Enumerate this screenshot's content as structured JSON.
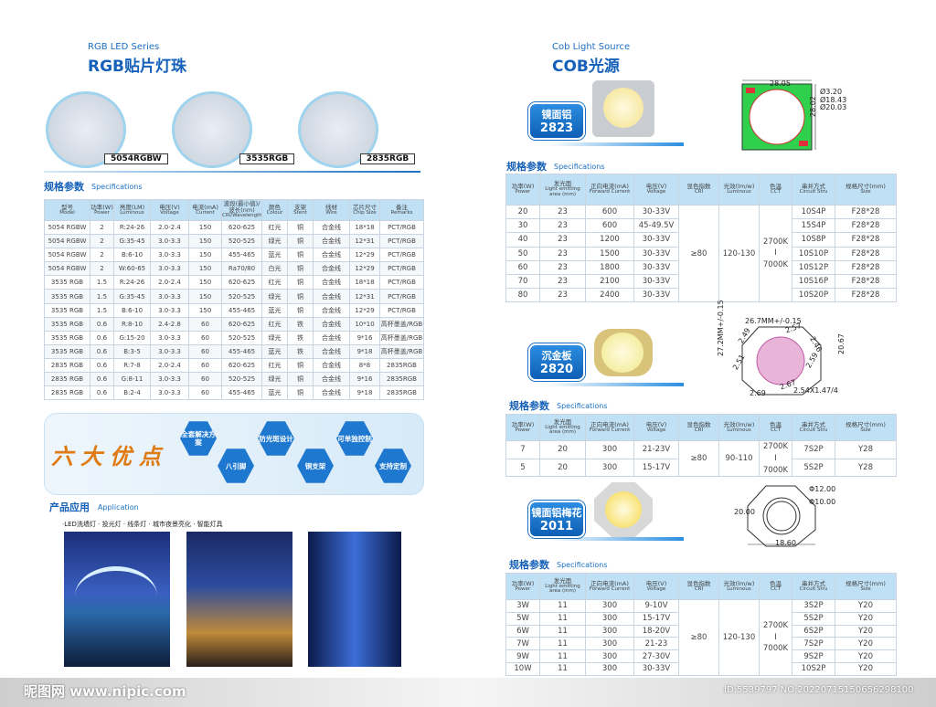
{
  "left": {
    "series": "RGB LED Series",
    "title": "RGB贴片灯珠",
    "products": [
      "5054RGBW",
      "3535RGB",
      "2835RGB"
    ],
    "spec": {
      "title": "规格参数",
      "subtitle": "Specifications"
    },
    "table": {
      "header": [
        [
          "型号",
          "Model"
        ],
        [
          "功率(W)",
          "Power"
        ],
        [
          "亮度(LM)",
          "Luminous"
        ],
        [
          "电压(V)",
          "Voltage"
        ],
        [
          "电流(mA)",
          "Current"
        ],
        [
          "波段(最小值)/波长(nm)",
          "CRI/Wavelength"
        ],
        [
          "颜色",
          "Colour"
        ],
        [
          "支架",
          "Stent"
        ],
        [
          "线材",
          "Wire"
        ],
        [
          "芯片尺寸",
          "Chip Size"
        ],
        [
          "备注",
          "Remarks"
        ]
      ],
      "rows": [
        [
          "5054 RGBW",
          "2",
          "R:24-26",
          "2.0-2.4",
          "150",
          "620-625",
          "红光",
          "铜",
          "合金线",
          "18*18",
          "PCT/RGB"
        ],
        [
          "5054 RGBW",
          "2",
          "G:35-45",
          "3.0-3.3",
          "150",
          "520-525",
          "绿光",
          "铜",
          "合金线",
          "12*31",
          "PCT/RGB"
        ],
        [
          "5054 RGBW",
          "2",
          "B:6-10",
          "3.0-3.3",
          "150",
          "455-465",
          "蓝光",
          "铜",
          "合金线",
          "12*29",
          "PCT/RGB"
        ],
        [
          "5054 RGBW",
          "2",
          "W:60-65",
          "3.0-3.3",
          "150",
          "Ra70/80",
          "白光",
          "铜",
          "合金线",
          "12*29",
          "PCT/RGB"
        ],
        [
          "3535 RGB",
          "1.5",
          "R:24-26",
          "2.0-2.4",
          "150",
          "620-625",
          "红光",
          "铜",
          "合金线",
          "18*18",
          "PCT/RGB"
        ],
        [
          "3535 RGB",
          "1.5",
          "G:35-45",
          "3.0-3.3",
          "150",
          "520-525",
          "绿光",
          "铜",
          "合金线",
          "12*31",
          "PCT/RGB"
        ],
        [
          "3535 RGB",
          "1.5",
          "B:6-10",
          "3.0-3.3",
          "150",
          "455-465",
          "蓝光",
          "铜",
          "合金线",
          "12*29",
          "PCT/RGB"
        ],
        [
          "3535 RGB",
          "0.6",
          "R:8-10",
          "2.4-2.8",
          "60",
          "620-625",
          "红光",
          "铁",
          "合金线",
          "10*10",
          "高杯墨盖/RGB"
        ],
        [
          "3535 RGB",
          "0.6",
          "G:15-20",
          "3.0-3.3",
          "60",
          "520-525",
          "绿光",
          "铁",
          "合金线",
          "9*16",
          "高杯墨盖/RGB"
        ],
        [
          "3535 RGB",
          "0.6",
          "B:3-5",
          "3.0-3.3",
          "60",
          "455-465",
          "蓝光",
          "铁",
          "合金线",
          "9*18",
          "高杯墨盖/RGB"
        ],
        [
          "2835 RGB",
          "0.6",
          "R:7-8",
          "2.0-2.4",
          "60",
          "620-625",
          "红光",
          "铜",
          "合金线",
          "8*8",
          "2835RGB"
        ],
        [
          "2835 RGB",
          "0.6",
          "G:8-11",
          "3.0-3.3",
          "60",
          "520-525",
          "绿光",
          "铜",
          "合金线",
          "9*16",
          "2835RGB"
        ],
        [
          "2835 RGB",
          "0.6",
          "B:2-4",
          "3.0-3.3",
          "60",
          "455-465",
          "蓝光",
          "铜",
          "合金线",
          "9*18",
          "2835RGB"
        ]
      ]
    },
    "advantages": {
      "title": "六大优点",
      "items": [
        "全套解决方案",
        "八引脚",
        "防光斑设计",
        "铜支架",
        "可单独控制",
        "支持定制"
      ]
    },
    "application": {
      "title": "产品应用",
      "subtitle": "Application",
      "uses": "·LED洗墙灯 · 投光灯 · 线条灯 · 城市夜景亮化 · 智能灯具"
    }
  },
  "right": {
    "series": "Cob Light Source",
    "title": "COB光源",
    "products": [
      {
        "badge": "镜面铝",
        "model": "2823",
        "dims": [
          "28.05",
          "Ø3.20",
          "Ø18.43",
          "Ø20.03",
          "28.02"
        ],
        "spec": {
          "title": "规格参数",
          "subtitle": "Specifications"
        },
        "table": {
          "header": [
            [
              "功率(W)",
              "Power"
            ],
            [
              "发光面",
              "Light emitting area (mm)"
            ],
            [
              "正向电流(mA)",
              "Forward Current"
            ],
            [
              "电压(V)",
              "Voltage"
            ],
            [
              "显色指数",
              "CRI"
            ],
            [
              "光效(lm/w)",
              "Luminous"
            ],
            [
              "色温",
              "CCT"
            ],
            [
              "串并方式",
              "Circuit Stru"
            ],
            [
              "规格尺寸(mm)",
              "Size"
            ]
          ],
          "rows": [
            [
              "20",
              "23",
              "600",
              "30-33V",
              "10S4P",
              "F28*28"
            ],
            [
              "30",
              "23",
              "600",
              "45-49.5V",
              "15S4P",
              "F28*28"
            ],
            [
              "40",
              "23",
              "1200",
              "30-33V",
              "10S8P",
              "F28*28"
            ],
            [
              "50",
              "23",
              "1500",
              "30-33V",
              "10S10P",
              "F28*28"
            ],
            [
              "60",
              "23",
              "1800",
              "30-33V",
              "10S12P",
              "F28*28"
            ],
            [
              "70",
              "23",
              "2100",
              "30-33V",
              "10S16P",
              "F28*28"
            ],
            [
              "80",
              "23",
              "2400",
              "30-33V",
              "10S20P",
              "F28*28"
            ]
          ],
          "merged": {
            "cri": "≥80",
            "luminous": "120-130",
            "cct": [
              "2700K",
              "I",
              "7000K"
            ]
          }
        }
      },
      {
        "badge": "沉金板",
        "model": "2820",
        "dims": [
          "26.7MM+/-0.15",
          "27.2MM+/-0.15",
          "2.49",
          "2.57",
          "2.46",
          "2.51",
          "2.59",
          "20.67",
          "2.69",
          "2.67",
          "2.54X1.47/4"
        ],
        "spec": {
          "title": "规格参数",
          "subtitle": "Specifications"
        },
        "table": {
          "header": [
            [
              "功率(W)",
              "Power"
            ],
            [
              "发光面",
              "Light emitting area (mm)"
            ],
            [
              "正向电流(mA)",
              "Forward Current"
            ],
            [
              "电压(V)",
              "Voltage"
            ],
            [
              "显色指数",
              "CRI"
            ],
            [
              "光效(lm/w)",
              "Luminous"
            ],
            [
              "色温",
              "CCT"
            ],
            [
              "串并方式",
              "Circuit Stru"
            ],
            [
              "规格尺寸(mm)",
              "Size"
            ]
          ],
          "rows": [
            [
              "7",
              "20",
              "300",
              "21-23V",
              "7S2P",
              "Y28"
            ],
            [
              "5",
              "20",
              "300",
              "15-17V",
              "5S2P",
              "Y28"
            ]
          ],
          "merged": {
            "cri": "≥80",
            "luminous": "90-110",
            "cct": [
              "2700K",
              "I",
              "7000K"
            ]
          }
        }
      },
      {
        "badge": "镜面铝梅花",
        "model": "2011",
        "dims": [
          "Φ12.00",
          "Φ10.00",
          "20.00",
          "18.60"
        ],
        "spec": {
          "title": "规格参数",
          "subtitle": "Specifications"
        },
        "table": {
          "header": [
            [
              "功率(W)",
              "Power"
            ],
            [
              "发光面",
              "Light emitting area (mm)"
            ],
            [
              "正向电流(mA)",
              "Forward Current"
            ],
            [
              "电压(V)",
              "Voltage"
            ],
            [
              "显色指数",
              "CRI"
            ],
            [
              "光效(lm/w)",
              "Luminous"
            ],
            [
              "色温",
              "CCT"
            ],
            [
              "串并方式",
              "Circuit Stru"
            ],
            [
              "规格尺寸(mm)",
              "Size"
            ]
          ],
          "rows": [
            [
              "3W",
              "11",
              "300",
              "9-10V",
              "3S2P",
              "Y20"
            ],
            [
              "5W",
              "11",
              "300",
              "15-17V",
              "5S2P",
              "Y20"
            ],
            [
              "6W",
              "11",
              "300",
              "18-20V",
              "6S2P",
              "Y20"
            ],
            [
              "7W",
              "11",
              "300",
              "21-23",
              "7S2P",
              "Y20"
            ],
            [
              "9W",
              "11",
              "300",
              "27-30V",
              "9S2P",
              "Y20"
            ],
            [
              "10W",
              "11",
              "300",
              "30-33V",
              "10S2P",
              "Y20"
            ]
          ],
          "merged": {
            "cri": "≥80",
            "luminous": "120-130",
            "cct": [
              "2700K",
              "I",
              "7000K"
            ]
          }
        }
      }
    ]
  },
  "footer": {
    "site": "昵图网 www.nipic.com",
    "id": "ID:5539797 NO:20220715150656298100"
  }
}
